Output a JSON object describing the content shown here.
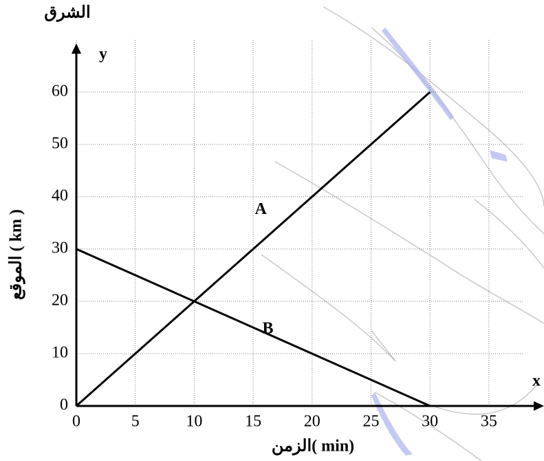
{
  "chart_data": {
    "type": "line",
    "annotation": "الشرق",
    "x_symbol": "x",
    "y_symbol": "y",
    "xlabel": "الزمن( min)",
    "ylabel": "الموقع ( km )",
    "series": [
      {
        "name": "A",
        "color": "#000000",
        "x": [
          0,
          30
        ],
        "values": [
          0,
          60
        ]
      },
      {
        "name": "B",
        "color": "#000000",
        "x": [
          0,
          30
        ],
        "values": [
          30,
          0
        ]
      }
    ],
    "xlim": [
      0,
      39.5
    ],
    "ylim": [
      0,
      68
    ],
    "xticks": [
      0,
      5,
      10,
      15,
      20,
      25,
      30,
      35
    ],
    "yticks": [
      0,
      10,
      20,
      30,
      40,
      50,
      60
    ],
    "grid": true
  }
}
